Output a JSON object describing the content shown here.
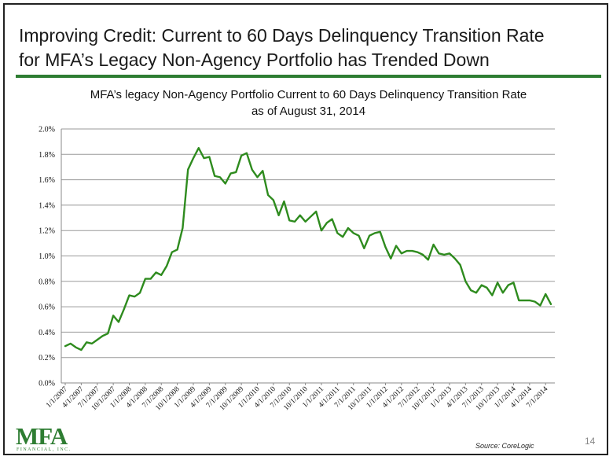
{
  "slide": {
    "title_line1": "Improving Credit: Current to 60 Days Delinquency Transition Rate",
    "title_line2": "for MFA’s Legacy Non-Agency Portfolio has Trended Down",
    "page_number": "14",
    "source": "Source: CoreLogic",
    "logo_main": "MFA",
    "logo_sub": "FINANCIAL, INC."
  },
  "chart_data": {
    "type": "line",
    "title_line1": "MFA’s legacy Non-Agency Portfolio Current to 60 Days Delinquency Transition Rate",
    "title_line2": "as of August 31, 2014",
    "xlabel": "",
    "ylabel": "",
    "ylim": [
      0,
      2.0
    ],
    "yticks": [
      "0.0%",
      "0.2%",
      "0.4%",
      "0.6%",
      "0.8%",
      "1.0%",
      "1.2%",
      "1.4%",
      "1.6%",
      "1.8%",
      "2.0%"
    ],
    "xtick_labels": [
      "1/1/2007",
      "4/1/2007",
      "7/1/2007",
      "10/1/2007",
      "1/1/2008",
      "4/1/2008",
      "7/1/2008",
      "10/1/2008",
      "1/1/2009",
      "4/1/2009",
      "7/1/2009",
      "10/1/2009",
      "1/1/2010",
      "4/1/2010",
      "7/1/2010",
      "10/1/2010",
      "1/1/2011",
      "4/1/2011",
      "7/1/2011",
      "10/1/2011",
      "1/1/2012",
      "4/1/2012",
      "7/1/2012",
      "10/1/2012",
      "1/1/2013",
      "4/1/2013",
      "7/1/2013",
      "10/1/2013",
      "1/1/2014",
      "4/1/2014",
      "7/1/2014"
    ],
    "grid": true,
    "line_color": "#2e8b1e",
    "series": [
      {
        "values": [
          0.29,
          0.31,
          0.28,
          0.26,
          0.32,
          0.31,
          0.34,
          0.37,
          0.39,
          0.53,
          0.48,
          0.58,
          0.69,
          0.68,
          0.71,
          0.82,
          0.82,
          0.87,
          0.85,
          0.92,
          1.03,
          1.05,
          1.22,
          1.68,
          1.77,
          1.85,
          1.77,
          1.78,
          1.63,
          1.62,
          1.57,
          1.65,
          1.66,
          1.79,
          1.81,
          1.68,
          1.62,
          1.67,
          1.48,
          1.44,
          1.32,
          1.43,
          1.28,
          1.27,
          1.32,
          1.27,
          1.31,
          1.35,
          1.2,
          1.26,
          1.29,
          1.18,
          1.15,
          1.22,
          1.18,
          1.16,
          1.06,
          1.16,
          1.18,
          1.19,
          1.07,
          0.98,
          1.08,
          1.02,
          1.04,
          1.04,
          1.03,
          1.01,
          0.97,
          1.09,
          1.02,
          1.01,
          1.02,
          0.98,
          0.93,
          0.8,
          0.73,
          0.71,
          0.77,
          0.75,
          0.69,
          0.79,
          0.71,
          0.77,
          0.79,
          0.65,
          0.65,
          0.65,
          0.64,
          0.61,
          0.7,
          0.62
        ]
      }
    ]
  }
}
